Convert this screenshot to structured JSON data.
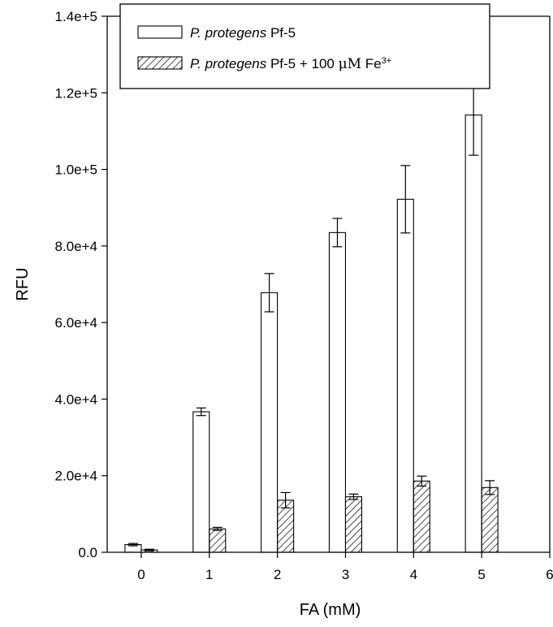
{
  "chart_data": {
    "type": "bar",
    "xlabel": "FA (mM)",
    "ylabel": "RFU",
    "xlim": [
      -0.5,
      6
    ],
    "ylim": [
      0,
      140000
    ],
    "x_ticks": [
      0,
      1,
      2,
      3,
      4,
      5,
      6
    ],
    "x_tick_labels": [
      "0",
      "1",
      "2",
      "3",
      "4",
      "5",
      "6"
    ],
    "y_ticks": [
      0,
      20000,
      40000,
      60000,
      80000,
      100000,
      120000,
      140000
    ],
    "y_tick_labels": [
      "0.0",
      "2.0e+4",
      "4.0e+4",
      "6.0e+4",
      "8.0e+4",
      "1.0e+5",
      "1.2e+5",
      "1.4e+5"
    ],
    "categories": [
      0,
      1,
      2,
      3,
      4,
      5
    ],
    "grid": false,
    "legend_position": "top-left",
    "series": [
      {
        "name": "P. protegens Pf-5",
        "name_parts": [
          {
            "text": "P. protegens",
            "style": "italic"
          },
          {
            "text": " Pf-5",
            "style": "normal"
          }
        ],
        "fill": "open",
        "values": [
          2000,
          36700,
          67800,
          83500,
          92200,
          114200
        ],
        "errors": [
          300,
          1000,
          5000,
          3700,
          8800,
          10500
        ]
      },
      {
        "name": "P. protegens Pf-5 + 100 μM Fe3+",
        "name_parts": [
          {
            "text": "P. protegens",
            "style": "italic"
          },
          {
            "text": " Pf-5 + 100 ",
            "style": "normal"
          },
          {
            "text": "μM",
            "style": "mu"
          },
          {
            "text": " Fe",
            "style": "normal"
          },
          {
            "text": "3+",
            "style": "superscript"
          }
        ],
        "fill": "hatched",
        "values": [
          600,
          6100,
          13600,
          14500,
          18600,
          16900
        ],
        "errors": [
          200,
          400,
          2000,
          700,
          1300,
          1800
        ]
      }
    ]
  },
  "colors": {
    "stroke": "#000000",
    "background": "#ffffff"
  }
}
